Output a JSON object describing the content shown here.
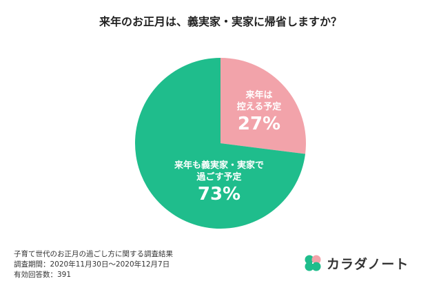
{
  "colors": {
    "major": "#1FBD8C",
    "minor": "#F2A3AA",
    "logo_green": "#1FBD8C",
    "logo_pink": "#F2A3AA",
    "text": "#222222"
  },
  "chart_data": {
    "type": "pie",
    "title": "来年のお正月は、義実家・実家に帰省しますか？",
    "slices": [
      {
        "label_lines": [
          "来年は",
          "控える予定"
        ],
        "value": 27,
        "value_label": "27%",
        "color": "#F2A3AA"
      },
      {
        "label_lines": [
          "来年も義実家・実家で",
          "過ごす予定"
        ],
        "value": 73,
        "value_label": "73%",
        "color": "#1FBD8C"
      }
    ]
  },
  "notes": {
    "survey_name": "子育て世代のお正月の過ごし方に関する調査結果",
    "period": "調査期間：2020年11月30日〜2020年12月7日",
    "responses": "有効回答数：391"
  },
  "logo": {
    "brand": "カラダノート",
    "icon": "clover-icon"
  }
}
